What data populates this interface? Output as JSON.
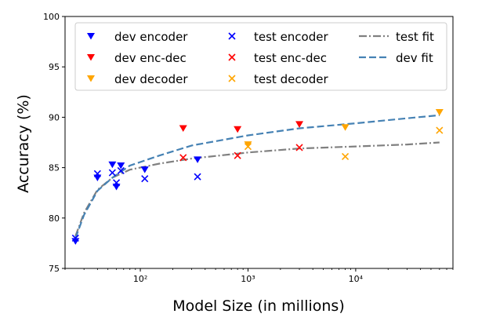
{
  "chart_data": {
    "type": "scatter",
    "xlabel": "Model Size (in millions)",
    "ylabel": "Accuracy (%)",
    "xscale": "log",
    "xlim": [
      20,
      80000
    ],
    "ylim": [
      75,
      100
    ],
    "yticks": [
      75,
      80,
      85,
      90,
      95,
      100
    ],
    "xticks": [
      {
        "value": 100,
        "label": "10²"
      },
      {
        "value": 1000,
        "label": "10³"
      },
      {
        "value": 10000,
        "label": "10⁴"
      }
    ],
    "grid": false,
    "legend_position": "top",
    "series": [
      {
        "name": "dev encoder",
        "marker": "triangle-down",
        "color": "#0000ff",
        "points": [
          [
            25,
            77.7
          ],
          [
            40,
            84.0
          ],
          [
            55,
            85.3
          ],
          [
            60,
            83.1
          ],
          [
            66,
            85.2
          ],
          [
            110,
            84.8
          ],
          [
            340,
            85.8
          ]
        ]
      },
      {
        "name": "dev enc-dec",
        "marker": "triangle-down",
        "color": "#ff0000",
        "points": [
          [
            250,
            88.9
          ],
          [
            800,
            88.8
          ],
          [
            3000,
            89.3
          ]
        ]
      },
      {
        "name": "dev decoder",
        "marker": "triangle-down",
        "color": "#ffa500",
        "points": [
          [
            1000,
            87.3
          ],
          [
            8000,
            89.0
          ],
          [
            60000,
            90.5
          ]
        ]
      },
      {
        "name": "test encoder",
        "marker": "x",
        "color": "#0000ff",
        "points": [
          [
            25,
            78.0
          ],
          [
            40,
            84.4
          ],
          [
            55,
            84.5
          ],
          [
            60,
            83.5
          ],
          [
            66,
            84.7
          ],
          [
            110,
            83.9
          ],
          [
            340,
            84.1
          ]
        ]
      },
      {
        "name": "test enc-dec",
        "marker": "x",
        "color": "#ff0000",
        "points": [
          [
            250,
            86.0
          ],
          [
            800,
            86.2
          ],
          [
            3000,
            87.0
          ]
        ]
      },
      {
        "name": "test decoder",
        "marker": "x",
        "color": "#ffa500",
        "points": [
          [
            1000,
            87.1
          ],
          [
            8000,
            86.1
          ],
          [
            60000,
            88.7
          ]
        ]
      }
    ],
    "fits": [
      {
        "name": "test fit",
        "style": "dash-dot",
        "color": "#808080",
        "points": [
          [
            25,
            78.2
          ],
          [
            30,
            80.5
          ],
          [
            40,
            82.8
          ],
          [
            55,
            84.0
          ],
          [
            80,
            84.8
          ],
          [
            150,
            85.4
          ],
          [
            300,
            85.9
          ],
          [
            1000,
            86.5
          ],
          [
            3000,
            86.9
          ],
          [
            10000,
            87.1
          ],
          [
            30000,
            87.3
          ],
          [
            60000,
            87.5
          ]
        ]
      },
      {
        "name": "dev fit",
        "style": "dashed",
        "color": "#4682b4",
        "points": [
          [
            25,
            78.0
          ],
          [
            30,
            80.3
          ],
          [
            40,
            82.7
          ],
          [
            55,
            84.0
          ],
          [
            80,
            85.2
          ],
          [
            150,
            86.2
          ],
          [
            300,
            87.2
          ],
          [
            1000,
            88.2
          ],
          [
            3000,
            88.9
          ],
          [
            10000,
            89.4
          ],
          [
            30000,
            89.9
          ],
          [
            60000,
            90.2
          ]
        ]
      }
    ]
  }
}
